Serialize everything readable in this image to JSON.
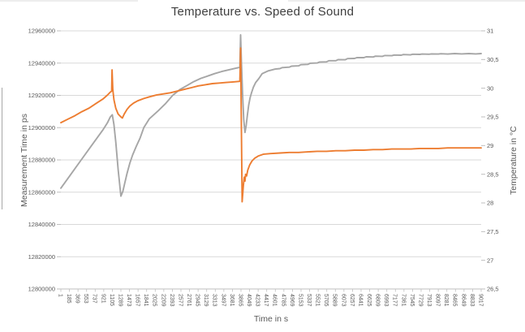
{
  "chart_data": {
    "type": "line",
    "title": "Temperature vs. Speed of Sound",
    "xlabel": "Time in s",
    "ylabel_left": "Measurement Time in ps",
    "ylabel_right": "Temperature in °C",
    "grid": "horizontal",
    "legend": "none",
    "x_range": [
      1,
      9017
    ],
    "x_tick_labels": [
      "1",
      "185",
      "369",
      "553",
      "737",
      "921",
      "1105",
      "1289",
      "1473",
      "1657",
      "1841",
      "2025",
      "2209",
      "2393",
      "2577",
      "2761",
      "2945",
      "3129",
      "3313",
      "3497",
      "3681",
      "3865",
      "4049",
      "4233",
      "4417",
      "4601",
      "4785",
      "4969",
      "5153",
      "5337",
      "5521",
      "5705",
      "5889",
      "6073",
      "6257",
      "6441",
      "6625",
      "6809",
      "6993",
      "7177",
      "7361",
      "7545",
      "7729",
      "7913",
      "8097",
      "8281",
      "8465",
      "8649",
      "8833",
      "9017"
    ],
    "y_left": {
      "min": 12800000,
      "max": 12960000,
      "step": 20000,
      "tick_labels": [
        "12960000",
        "12940000",
        "12920000",
        "12900000",
        "12880000",
        "12860000",
        "12840000",
        "12820000",
        "12800000"
      ]
    },
    "y_right": {
      "min": 26.5,
      "max": 31,
      "step": 0.5,
      "tick_labels": [
        "31",
        "30,5",
        "30",
        "29,5",
        "29",
        "28,5",
        "28",
        "27,5",
        "27",
        "26,5"
      ]
    },
    "series": [
      {
        "id": "measurement_time",
        "axis": "left",
        "color": "#a6a6a6",
        "width": 1.9,
        "points": [
          [
            1,
            12862500
          ],
          [
            150,
            12868500
          ],
          [
            300,
            12874500
          ],
          [
            450,
            12880500
          ],
          [
            600,
            12886500
          ],
          [
            750,
            12892500
          ],
          [
            900,
            12898500
          ],
          [
            1000,
            12903000
          ],
          [
            1060,
            12906500
          ],
          [
            1105,
            12908000
          ],
          [
            1140,
            12902000
          ],
          [
            1180,
            12891000
          ],
          [
            1230,
            12874000
          ],
          [
            1289,
            12857500
          ],
          [
            1330,
            12860500
          ],
          [
            1370,
            12865500
          ],
          [
            1420,
            12871500
          ],
          [
            1480,
            12878000
          ],
          [
            1540,
            12883000
          ],
          [
            1620,
            12888500
          ],
          [
            1700,
            12893500
          ],
          [
            1780,
            12900000
          ],
          [
            1900,
            12905500
          ],
          [
            2090,
            12910500
          ],
          [
            2250,
            12915000
          ],
          [
            2400,
            12920000
          ],
          [
            2550,
            12923500
          ],
          [
            2700,
            12926000
          ],
          [
            2850,
            12928500
          ],
          [
            3000,
            12930500
          ],
          [
            3150,
            12932000
          ],
          [
            3300,
            12933500
          ],
          [
            3450,
            12934800
          ],
          [
            3600,
            12935800
          ],
          [
            3750,
            12936800
          ],
          [
            3840,
            12937400
          ],
          [
            3857,
            12957500
          ],
          [
            3875,
            12940000
          ],
          [
            3900,
            12920000
          ],
          [
            3925,
            12905000
          ],
          [
            3950,
            12897000
          ],
          [
            3975,
            12901000
          ],
          [
            4000,
            12907500
          ],
          [
            4030,
            12914000
          ],
          [
            4060,
            12918500
          ],
          [
            4090,
            12921500
          ],
          [
            4130,
            12925000
          ],
          [
            4180,
            12928000
          ],
          [
            4250,
            12930500
          ],
          [
            4320,
            12933500
          ],
          [
            4450,
            12935200
          ],
          [
            4600,
            12936300
          ],
          [
            4700,
            12936600
          ],
          [
            4750,
            12937200
          ],
          [
            4900,
            12937500
          ],
          [
            4950,
            12938100
          ],
          [
            5100,
            12938300
          ],
          [
            5150,
            12939000
          ],
          [
            5300,
            12939200
          ],
          [
            5350,
            12939900
          ],
          [
            5500,
            12940100
          ],
          [
            5550,
            12940700
          ],
          [
            5700,
            12940800
          ],
          [
            5750,
            12941500
          ],
          [
            5900,
            12941500
          ],
          [
            5950,
            12942200
          ],
          [
            6100,
            12942100
          ],
          [
            6150,
            12942800
          ],
          [
            6300,
            12942900
          ],
          [
            6350,
            12943400
          ],
          [
            6500,
            12943400
          ],
          [
            6550,
            12943900
          ],
          [
            6700,
            12943800
          ],
          [
            6750,
            12944300
          ],
          [
            6900,
            12944200
          ],
          [
            6950,
            12944700
          ],
          [
            7100,
            12944600
          ],
          [
            7150,
            12945000
          ],
          [
            7300,
            12944900
          ],
          [
            7350,
            12945300
          ],
          [
            7500,
            12945100
          ],
          [
            7550,
            12945500
          ],
          [
            7700,
            12945400
          ],
          [
            7750,
            12945600
          ],
          [
            7900,
            12945500
          ],
          [
            7950,
            12945700
          ],
          [
            8100,
            12945600
          ],
          [
            8150,
            12945800
          ],
          [
            8300,
            12945600
          ],
          [
            8450,
            12945900
          ],
          [
            8600,
            12945700
          ],
          [
            8750,
            12945900
          ],
          [
            8900,
            12945700
          ],
          [
            9017,
            12945900
          ]
        ]
      },
      {
        "id": "temperature",
        "axis": "right",
        "color": "#ed7d31",
        "width": 1.9,
        "points": [
          [
            1,
            29.4
          ],
          [
            150,
            29.46
          ],
          [
            300,
            29.52
          ],
          [
            450,
            29.59
          ],
          [
            600,
            29.65
          ],
          [
            750,
            29.73
          ],
          [
            900,
            29.81
          ],
          [
            1000,
            29.88
          ],
          [
            1060,
            29.93
          ],
          [
            1090,
            29.95
          ],
          [
            1100,
            30.32
          ],
          [
            1115,
            29.98
          ],
          [
            1140,
            29.8
          ],
          [
            1180,
            29.65
          ],
          [
            1230,
            29.55
          ],
          [
            1289,
            29.5
          ],
          [
            1320,
            29.48
          ],
          [
            1360,
            29.55
          ],
          [
            1420,
            29.63
          ],
          [
            1480,
            29.69
          ],
          [
            1560,
            29.74
          ],
          [
            1650,
            29.78
          ],
          [
            1780,
            29.82
          ],
          [
            1900,
            29.85
          ],
          [
            2050,
            29.88
          ],
          [
            2200,
            29.9
          ],
          [
            2350,
            29.92
          ],
          [
            2500,
            29.95
          ],
          [
            2650,
            29.98
          ],
          [
            2800,
            30.01
          ],
          [
            2950,
            30.04
          ],
          [
            3100,
            30.06
          ],
          [
            3250,
            30.08
          ],
          [
            3400,
            30.09
          ],
          [
            3550,
            30.1
          ],
          [
            3700,
            30.11
          ],
          [
            3840,
            30.12
          ],
          [
            3857,
            30.7
          ],
          [
            3890,
            28.02
          ],
          [
            3915,
            28.3
          ],
          [
            3935,
            28.45
          ],
          [
            3950,
            28.38
          ],
          [
            3965,
            28.5
          ],
          [
            3985,
            28.47
          ],
          [
            4010,
            28.57
          ],
          [
            4050,
            28.66
          ],
          [
            4100,
            28.73
          ],
          [
            4160,
            28.78
          ],
          [
            4240,
            28.82
          ],
          [
            4350,
            28.85
          ],
          [
            4500,
            28.86
          ],
          [
            4700,
            28.87
          ],
          [
            4900,
            28.88
          ],
          [
            5100,
            28.88
          ],
          [
            5300,
            28.89
          ],
          [
            5500,
            28.9
          ],
          [
            5700,
            28.9
          ],
          [
            5900,
            28.91
          ],
          [
            6100,
            28.91
          ],
          [
            6300,
            28.92
          ],
          [
            6500,
            28.92
          ],
          [
            6700,
            28.93
          ],
          [
            6900,
            28.93
          ],
          [
            7100,
            28.94
          ],
          [
            7300,
            28.94
          ],
          [
            7500,
            28.94
          ],
          [
            7700,
            28.95
          ],
          [
            7900,
            28.95
          ],
          [
            8100,
            28.95
          ],
          [
            8300,
            28.96
          ],
          [
            8500,
            28.96
          ],
          [
            8700,
            28.96
          ],
          [
            8900,
            28.96
          ],
          [
            9017,
            28.96
          ]
        ]
      }
    ]
  },
  "colors": {
    "gridline": "#d9d9d9",
    "axis_line": "#bfbfbf",
    "tick_text": "#595959",
    "title_text": "#3f3f3f",
    "series_gray": "#a6a6a6",
    "series_orange": "#ed7d31"
  }
}
